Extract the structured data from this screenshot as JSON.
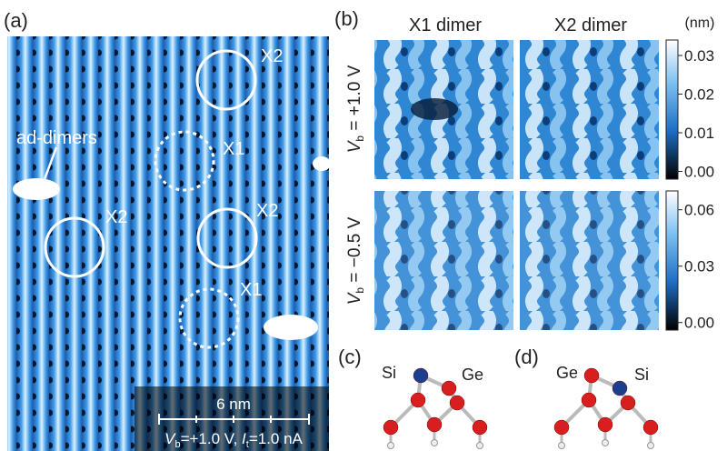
{
  "panels": {
    "a": "(a)",
    "b": "(b)",
    "c": "(c)",
    "d": "(d)"
  },
  "image_a": {
    "labels": [
      "X2",
      "X1",
      "X2",
      "X2",
      "X1"
    ],
    "ad_dimers": "ad-dimers",
    "scale_bar": "6 nm",
    "conditions": [
      "V",
      "b",
      "=+1.0 V, ",
      "I",
      "t",
      "=1.0 nA"
    ]
  },
  "image_b": {
    "columns": [
      "X1 dimer",
      "X2 dimer"
    ],
    "rows": [
      [
        "V",
        "b",
        " = +1.0 V"
      ],
      [
        "V",
        "b",
        " = −0.5 V"
      ]
    ],
    "unit": "(nm)",
    "colorbars": [
      {
        "range": [
          -0.002,
          0.034
        ],
        "ticks": [
          0.03,
          0.02,
          0.01,
          {
            "value": 0,
            "label": "0.00"
          }
        ]
      },
      {
        "range": [
          -0.004,
          0.07
        ],
        "ticks": [
          0.06,
          0.03,
          {
            "value": 0,
            "label": "0.00"
          }
        ]
      }
    ]
  },
  "structures": {
    "c": [
      "Si",
      "Ge"
    ],
    "d": [
      "Ge",
      "Si"
    ]
  }
}
